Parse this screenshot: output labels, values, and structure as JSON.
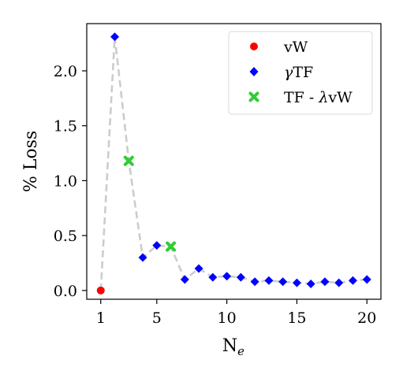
{
  "chart_data": {
    "type": "scatter",
    "xlabel_main": "N",
    "xlabel_sub": "e",
    "ylabel": "% Loss",
    "xlim": [
      0.0,
      21.0
    ],
    "ylim": [
      -0.08,
      2.43
    ],
    "xticks": [
      1,
      5,
      10,
      15,
      20
    ],
    "yticks": [
      0.0,
      0.5,
      1.0,
      1.5,
      2.0
    ],
    "ytick_labels": [
      "0.0",
      "0.5",
      "1.0",
      "1.5",
      "2.0"
    ],
    "grid": false,
    "legend_position": "top-right",
    "connector_line": {
      "style": "dashed",
      "color": "#cccccc",
      "x": [
        1,
        2,
        3,
        4,
        5,
        6,
        7,
        8,
        9,
        10,
        11,
        12,
        13,
        14,
        15,
        16,
        17,
        18,
        19,
        20
      ],
      "y": [
        0.0,
        2.31,
        1.18,
        0.3,
        0.41,
        0.4,
        0.1,
        0.2,
        0.12,
        0.13,
        0.12,
        0.08,
        0.09,
        0.08,
        0.07,
        0.06,
        0.08,
        0.07,
        0.09,
        0.1
      ]
    },
    "series": [
      {
        "name": "vW",
        "marker": "circle",
        "color": "#ff0000",
        "x": [
          1
        ],
        "y": [
          0.0
        ]
      },
      {
        "name": "γTF",
        "name_prefix": "γ",
        "name_main": "TF",
        "marker": "diamond",
        "color": "#0000ff",
        "x": [
          2,
          4,
          5,
          7,
          8,
          9,
          10,
          11,
          12,
          13,
          14,
          15,
          16,
          17,
          18,
          19,
          20
        ],
        "y": [
          2.31,
          0.3,
          0.41,
          0.1,
          0.2,
          0.12,
          0.13,
          0.12,
          0.08,
          0.09,
          0.08,
          0.07,
          0.06,
          0.08,
          0.07,
          0.09,
          0.1
        ]
      },
      {
        "name": "TF - λvW",
        "name_main": "TF - ",
        "name_lambda": "λ",
        "name_tail": "vW",
        "marker": "x",
        "color": "#33cc33",
        "x": [
          3,
          6
        ],
        "y": [
          1.18,
          0.4
        ]
      }
    ]
  }
}
